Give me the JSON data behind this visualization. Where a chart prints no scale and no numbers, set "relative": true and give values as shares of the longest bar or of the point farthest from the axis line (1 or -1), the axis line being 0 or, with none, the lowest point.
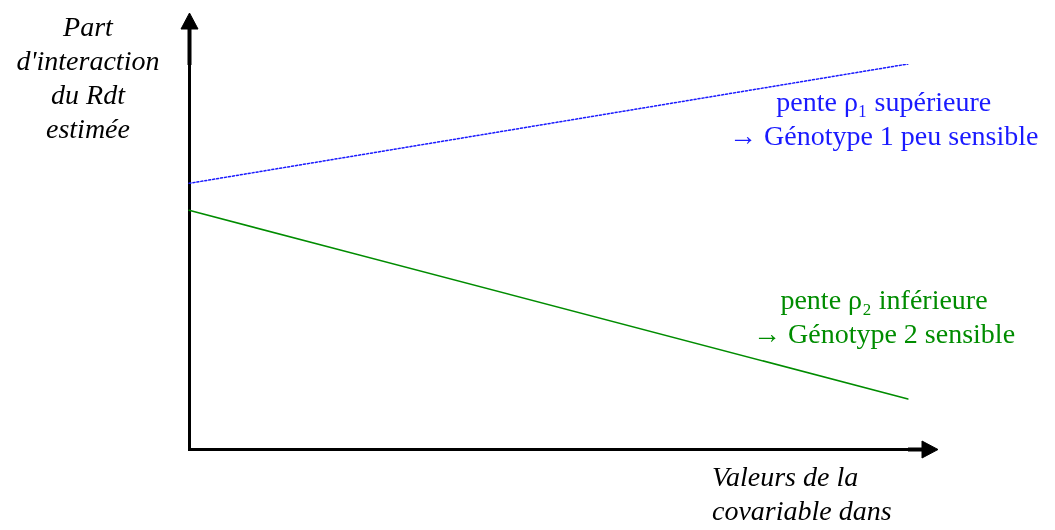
{
  "chart_data": {
    "type": "line",
    "relative": true,
    "marker": "none",
    "ylabel": "Part d'interaction du Rdt estimée",
    "xlabel": "Valeurs de la covariable dans",
    "categories": [
      null,
      null
    ],
    "series": [
      {
        "name": "pente ρ₁ supérieure\n→ Génotype 1 peu sensible",
        "color": "#1a1aff",
        "line_style": "dotted",
        "values": [
          0.69,
          1
        ]
      },
      {
        "name": "pente ρ₂ inférieure\n→ Génotype 2 sensible",
        "color": "#008c00",
        "line_style": "solid",
        "values": [
          0.62,
          0.13
        ]
      }
    ]
  }
}
